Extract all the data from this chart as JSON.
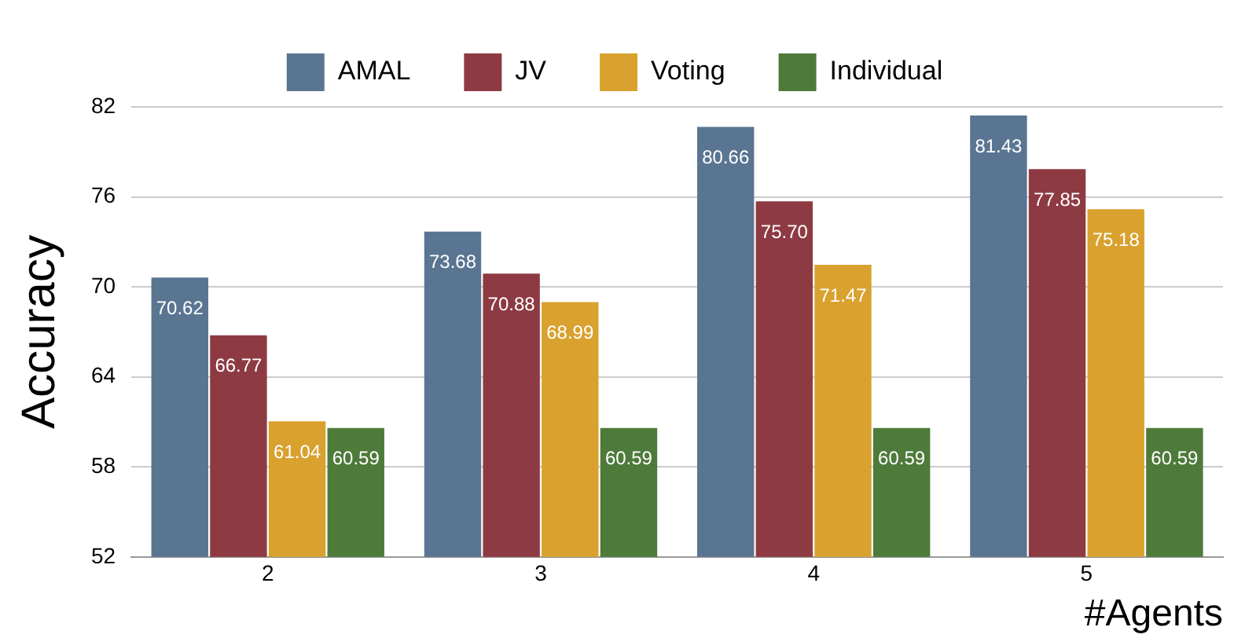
{
  "chart_data": {
    "type": "bar",
    "xlabel": "#Agents",
    "ylabel": "Accuracy",
    "categories": [
      "2",
      "3",
      "4",
      "5"
    ],
    "series": [
      {
        "name": "AMAL",
        "color": "#5a7592",
        "values": [
          70.62,
          73.68,
          80.66,
          81.43
        ],
        "value_labels": [
          "70.62",
          "73.68",
          "80.66",
          "81.43"
        ]
      },
      {
        "name": "JV",
        "color": "#8e3a43",
        "values": [
          66.77,
          70.88,
          75.7,
          77.85
        ],
        "value_labels": [
          "66.77",
          "70.88",
          "75.70",
          "77.85"
        ]
      },
      {
        "name": "Voting",
        "color": "#d9a12e",
        "values": [
          61.04,
          68.99,
          71.47,
          75.18
        ],
        "value_labels": [
          "61.04",
          "68.99",
          "71.47",
          "75.18"
        ]
      },
      {
        "name": "Individual",
        "color": "#4e7a3a",
        "values": [
          60.59,
          60.59,
          60.59,
          60.59
        ],
        "value_labels": [
          "60.59",
          "60.59",
          "60.59",
          "60.59"
        ]
      }
    ],
    "ylim": [
      52,
      82
    ],
    "yticks": [
      52,
      58,
      64,
      70,
      76,
      82
    ],
    "grid": "y",
    "legend": "top"
  }
}
